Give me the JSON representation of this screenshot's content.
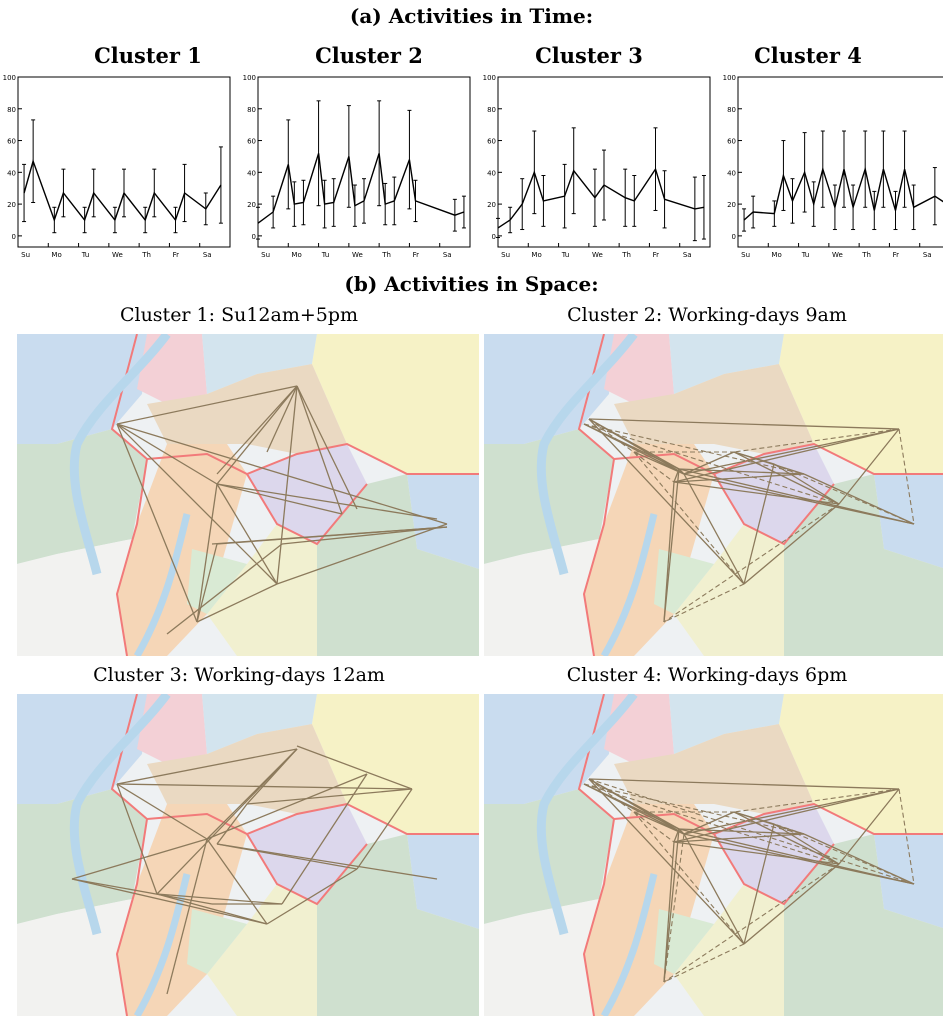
{
  "titles": {
    "a": "(a) Activities in Time:",
    "b": "(b) Activities in Space:"
  },
  "chart_data": [
    {
      "type": "line",
      "title": "Cluster 1",
      "xticks": [
        "Su",
        "Mo",
        "Tu",
        "We",
        "Th",
        "Fr",
        "Sa"
      ],
      "ylim": [
        -7,
        100
      ],
      "yticks": [
        0,
        20,
        40,
        60,
        80,
        100
      ],
      "x": [
        0.2,
        0.5,
        1.2,
        1.5,
        2.2,
        2.5,
        3.2,
        3.5,
        4.2,
        4.5,
        5.2,
        5.5,
        6.2,
        6.7
      ],
      "y": [
        27,
        47,
        10,
        27,
        10,
        27,
        10,
        27,
        10,
        27,
        10,
        27,
        17,
        32
      ],
      "err": [
        18,
        26,
        8,
        15,
        8,
        15,
        8,
        15,
        8,
        15,
        8,
        18,
        10,
        24
      ]
    },
    {
      "type": "line",
      "title": "Cluster 2",
      "xticks": [
        "Su",
        "Mo",
        "Tu",
        "We",
        "Th",
        "Fr",
        "Sa"
      ],
      "ylim": [
        -7,
        100
      ],
      "yticks": [
        0,
        20,
        40,
        60,
        80,
        100
      ],
      "x": [
        0,
        0.5,
        1.0,
        1.2,
        1.5,
        2.0,
        2.2,
        2.5,
        3.0,
        3.2,
        3.5,
        4.0,
        4.2,
        4.5,
        5.0,
        5.2,
        6.5,
        6.8
      ],
      "y": [
        8,
        15,
        45,
        20,
        21,
        52,
        20,
        21,
        50,
        19,
        22,
        52,
        20,
        22,
        48,
        22,
        13,
        15
      ],
      "err": [
        10,
        10,
        28,
        14,
        14,
        33,
        15,
        15,
        32,
        13,
        14,
        33,
        13,
        15,
        31,
        13,
        10,
        10
      ]
    },
    {
      "type": "line",
      "title": "Cluster 3",
      "xticks": [
        "Su",
        "Mo",
        "Tu",
        "We",
        "Th",
        "Fr",
        "Sa"
      ],
      "ylim": [
        -7,
        100
      ],
      "yticks": [
        0,
        20,
        40,
        60,
        80,
        100
      ],
      "x": [
        0,
        0.4,
        0.8,
        1.2,
        1.5,
        2.2,
        2.5,
        3.2,
        3.5,
        4.2,
        4.5,
        5.2,
        5.5,
        6.5,
        6.8
      ],
      "y": [
        5,
        10,
        20,
        40,
        22,
        25,
        41,
        24,
        32,
        24,
        22,
        42,
        23,
        17,
        18
      ],
      "err": [
        6,
        8,
        16,
        26,
        16,
        20,
        27,
        18,
        22,
        18,
        16,
        26,
        18,
        20,
        20
      ]
    },
    {
      "type": "line",
      "title": "Cluster 4",
      "xticks": [
        "Su",
        "Mo",
        "Tu",
        "We",
        "Th",
        "Fr",
        "Sa"
      ],
      "ylim": [
        -7,
        100
      ],
      "yticks": [
        0,
        20,
        40,
        60,
        80,
        100
      ],
      "x": [
        0.2,
        0.5,
        1.2,
        1.5,
        1.8,
        2.2,
        2.5,
        2.8,
        3.2,
        3.5,
        3.8,
        4.2,
        4.5,
        4.8,
        5.2,
        5.5,
        5.8,
        6.5,
        6.9
      ],
      "y": [
        10,
        15,
        14,
        38,
        22,
        40,
        20,
        42,
        18,
        42,
        18,
        42,
        16,
        42,
        16,
        42,
        18,
        25,
        20
      ],
      "err": [
        7,
        10,
        8,
        22,
        14,
        25,
        14,
        24,
        14,
        24,
        14,
        24,
        12,
        24,
        12,
        24,
        14,
        18,
        18
      ]
    }
  ],
  "maps": [
    {
      "caption": "Cluster 1: Su12am+5pm",
      "edges": [
        [
          30,
          12
        ],
        [
          30,
          9
        ],
        [
          30,
          0
        ],
        [
          30,
          7
        ],
        [
          30,
          25
        ],
        [
          30,
          27
        ],
        [
          30,
          31
        ],
        [
          12,
          0
        ],
        [
          12,
          13
        ],
        [
          12,
          27
        ],
        [
          12,
          11
        ],
        [
          0,
          11
        ],
        [
          0,
          13
        ],
        [
          0,
          27
        ],
        [
          27,
          15
        ],
        [
          27,
          31
        ],
        [
          27,
          13
        ],
        [
          13,
          14
        ],
        [
          14,
          32
        ],
        [
          22,
          32
        ],
        [
          24,
          32
        ],
        [
          24,
          29
        ]
      ],
      "dashed": []
    },
    {
      "caption": "Cluster 2: Working-days 9am",
      "edges": [
        [
          2,
          3
        ],
        [
          2,
          4
        ],
        [
          3,
          6
        ],
        [
          4,
          5
        ],
        [
          5,
          6
        ],
        [
          3,
          5
        ],
        [
          3,
          7
        ],
        [
          7,
          9
        ],
        [
          9,
          8
        ],
        [
          8,
          10
        ],
        [
          7,
          11
        ],
        [
          6,
          9
        ],
        [
          2,
          7
        ],
        [
          3,
          11
        ],
        [
          6,
          11
        ],
        [
          7,
          12
        ],
        [
          1,
          7
        ],
        [
          0,
          3
        ],
        [
          0,
          7
        ],
        [
          5,
          10
        ],
        [
          9,
          10
        ],
        [
          4,
          7
        ],
        [
          2,
          12
        ],
        [
          4,
          10
        ],
        [
          10,
          12
        ],
        [
          8,
          12
        ],
        [
          3,
          13
        ],
        [
          5,
          13
        ]
      ],
      "dashed": [
        [
          1,
          9
        ],
        [
          0,
          6
        ],
        [
          4,
          11
        ],
        [
          8,
          11
        ],
        [
          12,
          13
        ],
        [
          10,
          13
        ],
        [
          2,
          5
        ],
        [
          4,
          9
        ],
        [
          1,
          12
        ],
        [
          0,
          10
        ]
      ]
    },
    {
      "caption": "Cluster 3: Working-days 12am",
      "edges": [
        [
          16,
          17
        ],
        [
          16,
          18
        ],
        [
          16,
          26
        ],
        [
          16,
          19
        ],
        [
          17,
          18
        ],
        [
          17,
          20
        ],
        [
          17,
          19
        ],
        [
          18,
          21
        ],
        [
          18,
          23
        ],
        [
          18,
          28
        ],
        [
          21,
          22
        ],
        [
          19,
          23
        ],
        [
          19,
          24
        ],
        [
          22,
          24
        ],
        [
          21,
          23
        ],
        [
          20,
          25
        ],
        [
          20,
          26
        ],
        [
          25,
          27
        ],
        [
          26,
          27
        ],
        [
          27,
          15
        ],
        [
          25,
          23
        ],
        [
          28,
          24
        ],
        [
          18,
          29
        ],
        [
          20,
          30
        ]
      ],
      "dashed": []
    },
    {
      "caption": "Cluster 4: Working-days 6pm",
      "edges": [
        [
          2,
          3
        ],
        [
          2,
          4
        ],
        [
          3,
          6
        ],
        [
          4,
          5
        ],
        [
          5,
          6
        ],
        [
          3,
          5
        ],
        [
          3,
          7
        ],
        [
          7,
          9
        ],
        [
          9,
          8
        ],
        [
          8,
          10
        ],
        [
          7,
          11
        ],
        [
          6,
          9
        ],
        [
          2,
          7
        ],
        [
          3,
          11
        ],
        [
          6,
          11
        ],
        [
          7,
          12
        ],
        [
          1,
          7
        ],
        [
          0,
          3
        ],
        [
          0,
          7
        ],
        [
          5,
          10
        ],
        [
          9,
          10
        ],
        [
          4,
          7
        ],
        [
          2,
          12
        ],
        [
          4,
          10
        ],
        [
          10,
          12
        ],
        [
          8,
          12
        ],
        [
          3,
          13
        ],
        [
          5,
          13
        ]
      ],
      "dashed": [
        [
          1,
          9
        ],
        [
          0,
          6
        ],
        [
          4,
          11
        ],
        [
          8,
          11
        ],
        [
          12,
          13
        ],
        [
          10,
          13
        ],
        [
          2,
          5
        ],
        [
          4,
          9
        ],
        [
          1,
          12
        ],
        [
          0,
          10
        ],
        [
          2,
          11
        ],
        [
          7,
          13
        ],
        [
          6,
          8
        ]
      ]
    }
  ],
  "map_colors": {
    "edge": "#8c7a5c",
    "boundary": "#f27a7a",
    "river": "#b7d7ec",
    "regions": [
      "#c9dcef",
      "#f3d0d6",
      "#d3e4ee",
      "#f6f2c6",
      "#cfe0cf",
      "#ead9c2",
      "#f5d6b7",
      "#dcd7ec",
      "#e9e7e2",
      "#d9ead4",
      "#f1f0d0",
      "#f2f2f0"
    ]
  }
}
